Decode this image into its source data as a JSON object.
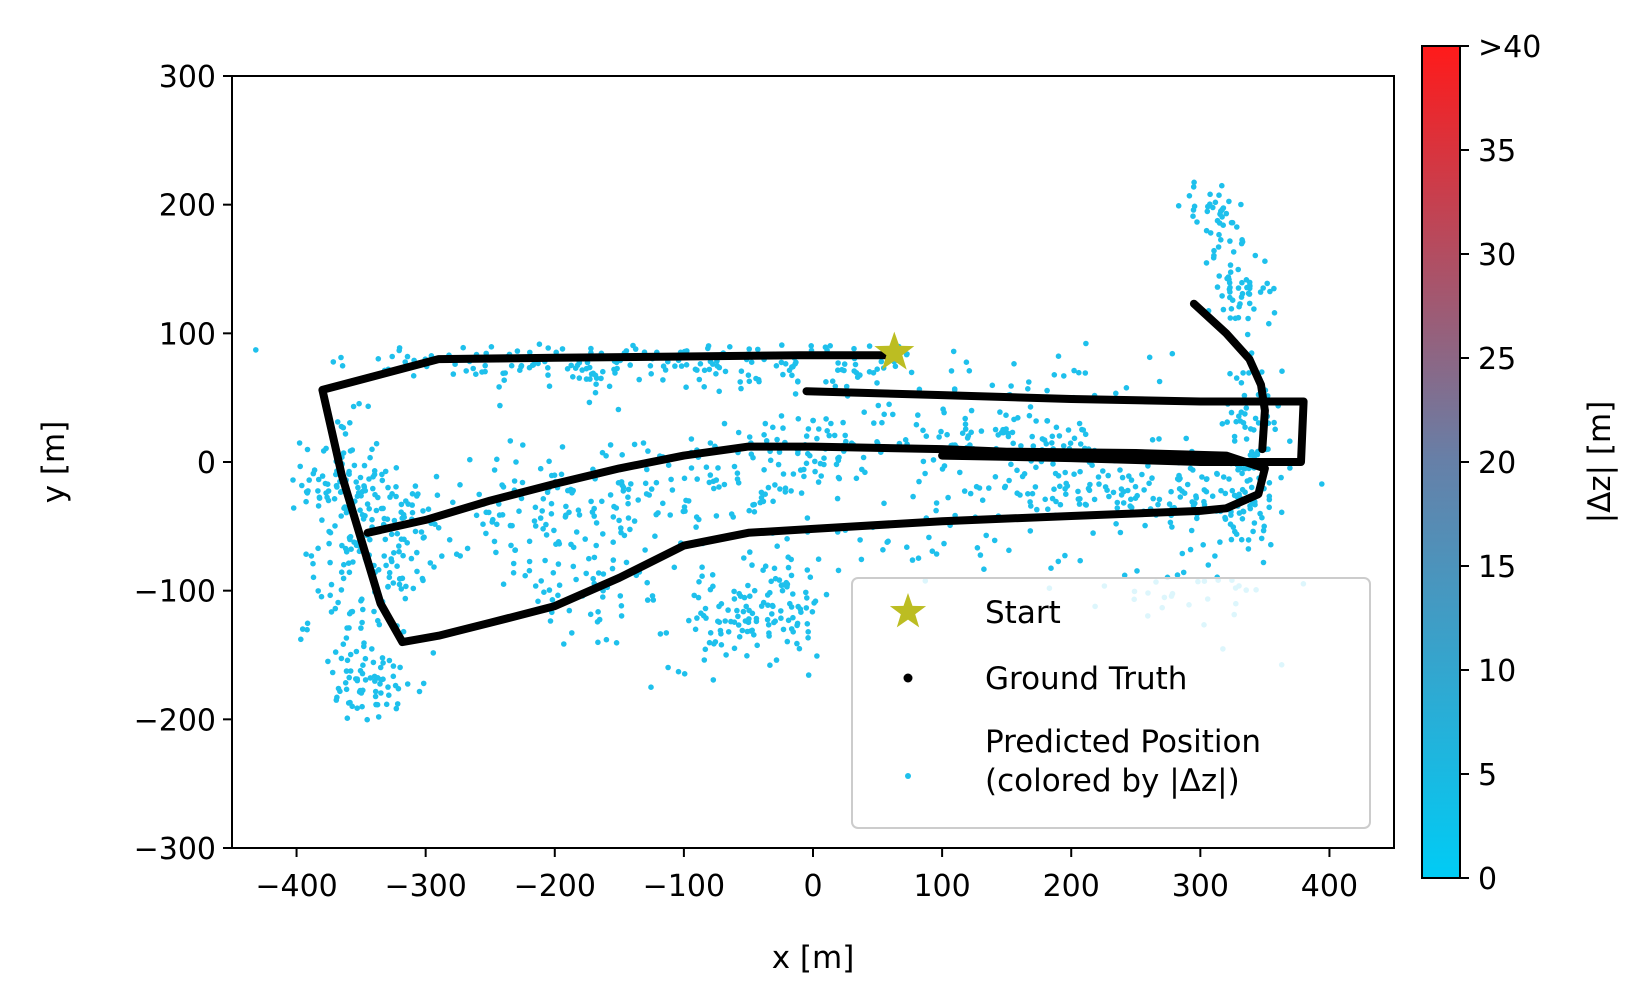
{
  "chart_data": {
    "type": "scatter",
    "xlabel": "x [m]",
    "ylabel": "y [m]",
    "xlim": [
      -450,
      450
    ],
    "ylim": [
      -300,
      300
    ],
    "xticks": [
      -400,
      -300,
      -200,
      -100,
      0,
      100,
      200,
      300,
      400
    ],
    "yticks": [
      -300,
      -200,
      -100,
      0,
      100,
      200,
      300
    ],
    "xtick_labels": [
      "−400",
      "−300",
      "−200",
      "−100",
      "0",
      "100",
      "200",
      "300",
      "400"
    ],
    "ytick_labels": [
      "−300",
      "−200",
      "−100",
      "0",
      "100",
      "200",
      "300"
    ],
    "grid": false,
    "colorbar": {
      "label": "|Δz| [m]",
      "range": [
        0,
        40
      ],
      "ticks": [
        0,
        5,
        10,
        15,
        20,
        25,
        30,
        35,
        40
      ],
      "tick_labels": [
        "0",
        "5",
        "10",
        "15",
        "20",
        "25",
        "30",
        "35",
        ">40"
      ],
      "color_low": "#00ccf5",
      "color_high": "#ff1a1a"
    },
    "legend": {
      "position": "lower-right",
      "entries": [
        {
          "label": "Start",
          "marker": "star",
          "color": "#bcbd22"
        },
        {
          "label": "Ground Truth",
          "marker": "dot",
          "color": "#000000"
        },
        {
          "label": "Predicted Position\n(colored by |Δz|)",
          "marker": "dot",
          "color": "#1ec0ec"
        }
      ]
    },
    "start": {
      "x": 63,
      "y": 85
    },
    "ground_truth_path": [
      [
        63,
        83
      ],
      [
        -10,
        83
      ],
      [
        -100,
        82
      ],
      [
        -200,
        81
      ],
      [
        -290,
        80
      ],
      [
        -320,
        72
      ],
      [
        -380,
        56
      ],
      [
        -365,
        -10
      ],
      [
        -350,
        -60
      ],
      [
        -335,
        -110
      ],
      [
        -318,
        -140
      ],
      [
        -290,
        -135
      ],
      [
        -250,
        -125
      ],
      [
        -200,
        -112
      ],
      [
        -150,
        -90
      ],
      [
        -100,
        -65
      ],
      [
        -50,
        -55
      ],
      [
        0,
        -52
      ],
      [
        100,
        -46
      ],
      [
        200,
        -42
      ],
      [
        300,
        -38
      ],
      [
        320,
        -36
      ],
      [
        345,
        -25
      ],
      [
        350,
        -5
      ],
      [
        320,
        5
      ],
      [
        250,
        7
      ],
      [
        150,
        8
      ],
      [
        100,
        10
      ],
      [
        0,
        12
      ],
      [
        -50,
        12
      ],
      [
        -100,
        5
      ],
      [
        -150,
        -5
      ],
      [
        -200,
        -17
      ],
      [
        -250,
        -30
      ],
      [
        -300,
        -45
      ],
      [
        -345,
        -55
      ]
    ],
    "ground_truth_path_2": [
      [
        -5,
        55
      ],
      [
        100,
        52
      ],
      [
        200,
        49
      ],
      [
        300,
        47
      ],
      [
        380,
        47
      ],
      [
        378,
        0
      ],
      [
        300,
        0
      ],
      [
        200,
        3
      ],
      [
        100,
        5
      ]
    ],
    "ground_truth_path_3": [
      [
        295,
        123
      ],
      [
        320,
        100
      ],
      [
        338,
        80
      ],
      [
        347,
        60
      ],
      [
        350,
        40
      ],
      [
        348,
        10
      ]
    ],
    "predicted_clusters": [
      {
        "cx": -200,
        "cy": 78,
        "sx": 90,
        "sy": 8,
        "n": 110
      },
      {
        "cx": -20,
        "cy": 76,
        "sx": 60,
        "sy": 10,
        "n": 60
      },
      {
        "cx": -90,
        "cy": 65,
        "sx": 100,
        "sy": 15,
        "n": 40
      },
      {
        "cx": -365,
        "cy": -15,
        "sx": 15,
        "sy": 25,
        "n": 90
      },
      {
        "cx": -340,
        "cy": -60,
        "sx": 25,
        "sy": 25,
        "n": 100
      },
      {
        "cx": -350,
        "cy": -120,
        "sx": 20,
        "sy": 25,
        "n": 50
      },
      {
        "cx": -340,
        "cy": -175,
        "sx": 20,
        "sy": 15,
        "n": 60
      },
      {
        "cx": -240,
        "cy": -40,
        "sx": 50,
        "sy": 20,
        "n": 90
      },
      {
        "cx": -140,
        "cy": -20,
        "sx": 45,
        "sy": 22,
        "n": 80
      },
      {
        "cx": -180,
        "cy": -100,
        "sx": 40,
        "sy": 25,
        "n": 60
      },
      {
        "cx": -60,
        "cy": -125,
        "sx": 25,
        "sy": 18,
        "n": 90
      },
      {
        "cx": -20,
        "cy": -100,
        "sx": 18,
        "sy": 25,
        "n": 50
      },
      {
        "cx": 0,
        "cy": 10,
        "sx": 30,
        "sy": 15,
        "n": 60
      },
      {
        "cx": 130,
        "cy": 20,
        "sx": 60,
        "sy": 12,
        "n": 90
      },
      {
        "cx": 180,
        "cy": -10,
        "sx": 60,
        "sy": 15,
        "n": 80
      },
      {
        "cx": 260,
        "cy": -25,
        "sx": 45,
        "sy": 12,
        "n": 80
      },
      {
        "cx": 330,
        "cy": -30,
        "sx": 20,
        "sy": 30,
        "n": 80
      },
      {
        "cx": 340,
        "cy": 30,
        "sx": 12,
        "sy": 30,
        "n": 60
      },
      {
        "cx": 330,
        "cy": 135,
        "sx": 12,
        "sy": 15,
        "n": 50
      },
      {
        "cx": 310,
        "cy": 190,
        "sx": 12,
        "sy": 15,
        "n": 40
      },
      {
        "cx": 150,
        "cy": 65,
        "sx": 80,
        "sy": 15,
        "n": 40
      },
      {
        "cx": 280,
        "cy": -100,
        "sx": 40,
        "sy": 20,
        "n": 30
      },
      {
        "cx": 100,
        "cy": -60,
        "sx": 60,
        "sy": 15,
        "n": 40
      },
      {
        "cx": -60,
        "cy": -30,
        "sx": 40,
        "sy": 25,
        "n": 50
      }
    ]
  }
}
